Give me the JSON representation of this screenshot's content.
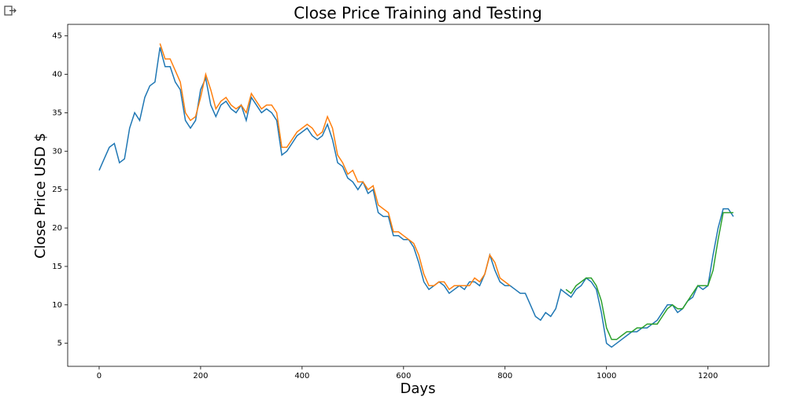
{
  "chart_data": {
    "type": "line",
    "title": "Close Price Training and Testing",
    "xlabel": "Days",
    "ylabel": "Close Price USD $",
    "xlim": [
      -62,
      1320
    ],
    "ylim": [
      2.0,
      46.5
    ],
    "xticks": [
      0,
      200,
      400,
      600,
      800,
      1000,
      1200
    ],
    "yticks": [
      5,
      10,
      15,
      20,
      25,
      30,
      35,
      40,
      45
    ],
    "x": [
      0,
      10,
      20,
      30,
      40,
      50,
      60,
      70,
      80,
      90,
      100,
      110,
      120,
      130,
      140,
      150,
      160,
      170,
      180,
      190,
      200,
      210,
      220,
      230,
      240,
      250,
      260,
      270,
      280,
      290,
      300,
      310,
      320,
      330,
      340,
      350,
      360,
      370,
      380,
      390,
      400,
      410,
      420,
      430,
      440,
      450,
      460,
      470,
      480,
      490,
      500,
      510,
      520,
      530,
      540,
      550,
      560,
      570,
      580,
      590,
      600,
      610,
      620,
      630,
      640,
      650,
      660,
      670,
      680,
      690,
      700,
      710,
      720,
      730,
      740,
      750,
      760,
      770,
      780,
      790,
      800,
      810,
      820,
      830,
      840,
      850,
      860,
      870,
      880,
      890,
      900,
      910,
      920,
      930,
      940,
      950,
      960,
      970,
      980,
      990,
      1000,
      1010,
      1020,
      1030,
      1040,
      1050,
      1060,
      1070,
      1080,
      1090,
      1100,
      1110,
      1120,
      1130,
      1140,
      1150,
      1160,
      1170,
      1180,
      1190,
      1200,
      1210,
      1220,
      1230,
      1240,
      1250
    ],
    "series": [
      {
        "color": "#1f77b4",
        "values": [
          27.5,
          29,
          30.5,
          31,
          28.5,
          29,
          33,
          35,
          34,
          37,
          38.5,
          39,
          43.5,
          41,
          41,
          39,
          38,
          34,
          33,
          34,
          38,
          39.5,
          36,
          34.5,
          36,
          36.5,
          35.5,
          35,
          36,
          34,
          37,
          36,
          35,
          35.5,
          35,
          34,
          29.5,
          30,
          31,
          32,
          32.5,
          33,
          32,
          31.5,
          32,
          33.5,
          31.5,
          28.5,
          28,
          26.5,
          26,
          25,
          26,
          24.5,
          25,
          22,
          21.5,
          21.5,
          19,
          19,
          18.5,
          18.5,
          17.5,
          15.5,
          13,
          12,
          12.5,
          13,
          12.5,
          11.5,
          12,
          12.5,
          12,
          13,
          13,
          12.5,
          14,
          16.5,
          14.5,
          13,
          12.5,
          12.5,
          12,
          11.5,
          11.5,
          10,
          8.5,
          8,
          9,
          8.5,
          9.5,
          12,
          11.5,
          11,
          12,
          12.5,
          13.5,
          13,
          12,
          9,
          5,
          4.5,
          5,
          5.5,
          6,
          6.5,
          6.5,
          7,
          7,
          7.5,
          8,
          9,
          10,
          10,
          9,
          9.5,
          10.5,
          11,
          12.5,
          12,
          12.5,
          16.5,
          20,
          22.5,
          22.5,
          21.5
        ]
      },
      {
        "color": "#ff7f0e",
        "values": [
          null,
          null,
          null,
          null,
          null,
          null,
          null,
          null,
          null,
          null,
          null,
          null,
          44,
          42,
          42,
          40.5,
          39,
          35,
          34,
          34.5,
          37,
          40,
          38,
          35.5,
          36.5,
          37,
          36,
          35.5,
          36,
          35,
          37.5,
          36.5,
          35.5,
          36,
          36,
          35,
          30.5,
          30.5,
          31.5,
          32.5,
          33,
          33.5,
          33,
          32,
          32.5,
          34.5,
          33,
          29.5,
          28.5,
          27,
          27.5,
          26,
          26,
          25,
          25.5,
          23,
          22.5,
          22,
          19.5,
          19.5,
          19,
          18.5,
          18,
          16.5,
          14,
          12.5,
          12.5,
          13,
          13,
          12,
          12.5,
          12.5,
          12.5,
          12.5,
          13.5,
          13,
          14,
          16.5,
          15.5,
          13.5,
          13,
          12.5,
          null,
          null,
          null,
          null,
          null,
          null,
          null,
          null,
          null,
          null,
          null,
          null,
          null,
          null,
          null,
          null,
          null,
          null,
          null,
          null,
          null,
          null,
          null,
          null,
          null,
          null,
          null,
          null,
          null,
          null,
          null,
          null,
          null,
          null,
          null,
          null,
          null,
          null,
          null,
          null,
          null,
          null,
          null,
          null
        ]
      },
      {
        "color": "#2ca02c",
        "values": [
          null,
          null,
          null,
          null,
          null,
          null,
          null,
          null,
          null,
          null,
          null,
          null,
          null,
          null,
          null,
          null,
          null,
          null,
          null,
          null,
          null,
          null,
          null,
          null,
          null,
          null,
          null,
          null,
          null,
          null,
          null,
          null,
          null,
          null,
          null,
          null,
          null,
          null,
          null,
          null,
          null,
          null,
          null,
          null,
          null,
          null,
          null,
          null,
          null,
          null,
          null,
          null,
          null,
          null,
          null,
          null,
          null,
          null,
          null,
          null,
          null,
          null,
          null,
          null,
          null,
          null,
          null,
          null,
          null,
          null,
          null,
          null,
          null,
          null,
          null,
          null,
          null,
          null,
          null,
          null,
          null,
          null,
          null,
          null,
          null,
          null,
          null,
          null,
          null,
          null,
          null,
          null,
          12,
          11.5,
          12.5,
          13,
          13.5,
          13.5,
          12.5,
          10.5,
          7,
          5.5,
          5.5,
          6,
          6.5,
          6.5,
          7,
          7,
          7.5,
          7.5,
          7.5,
          8.5,
          9.5,
          10,
          9.5,
          9.5,
          10.5,
          11.5,
          12.5,
          12.5,
          12.5,
          14.5,
          18.5,
          22,
          22,
          22
        ]
      }
    ]
  }
}
